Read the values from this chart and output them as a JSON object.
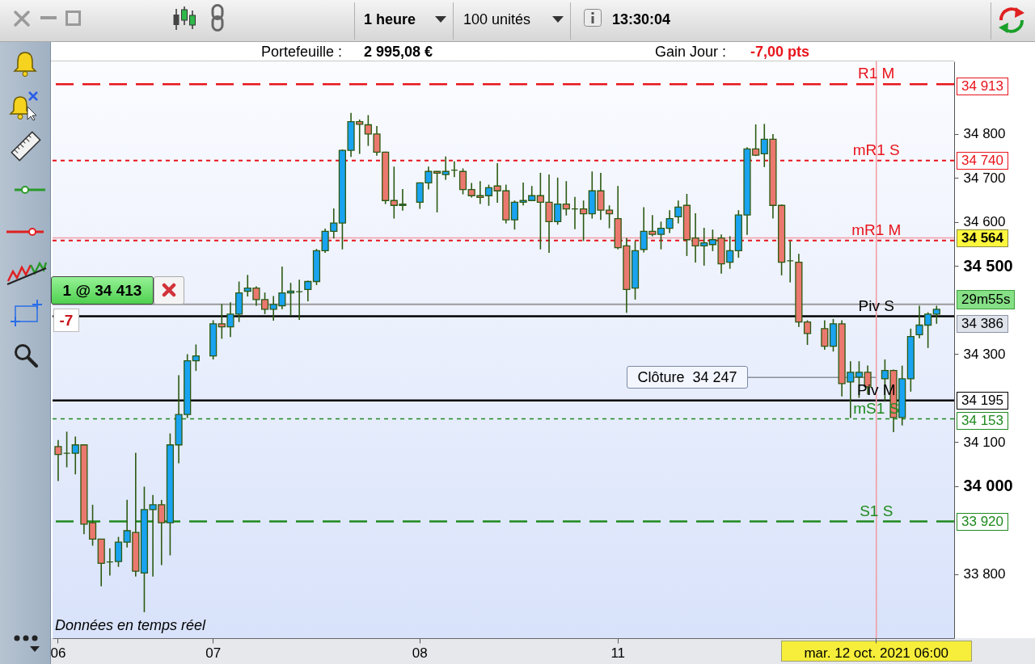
{
  "chart_data": {
    "type": "candlestick",
    "categories": [
      "06",
      null,
      null,
      null,
      null,
      null,
      null,
      null,
      null,
      null,
      null,
      null,
      null,
      null,
      null,
      null,
      null,
      null,
      "07",
      null,
      null,
      null,
      null,
      null,
      null,
      null,
      null,
      null,
      null,
      null,
      null,
      null,
      null,
      null,
      null,
      null,
      null,
      null,
      null,
      null,
      null,
      null,
      "08",
      null,
      null,
      null,
      null,
      null,
      null,
      null,
      null,
      null,
      null,
      null,
      null,
      null,
      null,
      null,
      null,
      null,
      null,
      null,
      null,
      null,
      null,
      "11",
      null,
      null,
      null,
      null,
      null,
      null,
      null,
      null,
      null,
      null,
      null,
      null,
      null,
      null,
      null,
      null,
      null,
      null,
      null,
      null,
      null,
      null,
      null,
      null,
      null,
      null,
      null,
      null,
      null,
      "mar. 12 oct. 2021 06:00",
      null,
      null,
      null,
      null,
      null,
      null,
      null
    ],
    "ohlc": [
      [
        34090,
        34105,
        34012,
        34072
      ],
      [
        34075,
        34124,
        34043,
        34075
      ],
      [
        34075,
        34113,
        34027,
        34094
      ],
      [
        34094,
        34094,
        33891,
        33914
      ],
      [
        33917,
        33958,
        33865,
        33880
      ],
      [
        33880,
        33880,
        33773,
        33825
      ],
      [
        33828,
        33859,
        33797,
        33828
      ],
      [
        33829,
        33885,
        33817,
        33873
      ],
      [
        33873,
        33969,
        33861,
        33899
      ],
      [
        33895,
        34076,
        33795,
        33807
      ],
      [
        33803,
        33999,
        33714,
        33947
      ],
      [
        33947,
        33980,
        33795,
        33958
      ],
      [
        33958,
        33969,
        33821,
        33917
      ],
      [
        33917,
        34120,
        33843,
        34094
      ],
      [
        34094,
        34252,
        34052,
        34163
      ],
      [
        34163,
        34300,
        34155,
        34285
      ],
      [
        34285,
        34322,
        34262,
        34296
      ],
      null,
      [
        34296,
        34377,
        34288,
        34369
      ],
      [
        34369,
        34414,
        34335,
        34362
      ],
      [
        34362,
        34418,
        34339,
        34391
      ],
      [
        34391,
        34465,
        34373,
        34439
      ],
      [
        34443,
        34480,
        34431,
        34450
      ],
      [
        34450,
        34454,
        34410,
        34424
      ],
      [
        34424,
        34440,
        34391,
        34402
      ],
      [
        34402,
        34432,
        34376,
        34413
      ],
      [
        34410,
        34499,
        34402,
        34439
      ],
      [
        34439,
        34462,
        34387,
        34443
      ],
      [
        34442,
        34469,
        34378,
        34442
      ],
      [
        34447,
        34467,
        34420,
        34465
      ],
      [
        34465,
        34539,
        34457,
        34535
      ],
      [
        34535,
        34585,
        34530,
        34579
      ],
      [
        34579,
        34631,
        34563,
        34598
      ],
      [
        34598,
        34765,
        34538,
        34763
      ],
      [
        34763,
        34848,
        34748,
        34828
      ],
      [
        34828,
        34833,
        34755,
        34822
      ],
      [
        34821,
        34843,
        34773,
        34800
      ],
      [
        34800,
        34818,
        34751,
        34759
      ],
      [
        34759,
        34760,
        34641,
        34649
      ],
      [
        34649,
        34726,
        34608,
        34638
      ],
      [
        34638,
        34675,
        34626,
        34641
      ],
      null,
      [
        34645,
        34690,
        34630,
        34689
      ],
      [
        34689,
        34726,
        34674,
        34715
      ],
      [
        34715,
        34716,
        34622,
        34711
      ],
      [
        34708,
        34749,
        34696,
        34715
      ],
      [
        34718,
        34738,
        34702,
        34718
      ],
      [
        34715,
        34722,
        34663,
        34674
      ],
      [
        34674,
        34689,
        34656,
        34660
      ],
      [
        34660,
        34693,
        34641,
        34656
      ],
      [
        34660,
        34685,
        34637,
        34678
      ],
      [
        34682,
        34734,
        34644,
        34671
      ],
      [
        34671,
        34685,
        34597,
        34605
      ],
      [
        34605,
        34649,
        34583,
        34645
      ],
      [
        34645,
        34690,
        34638,
        34649
      ],
      [
        34649,
        34682,
        34648,
        34660
      ],
      [
        34660,
        34712,
        34538,
        34645
      ],
      [
        34645,
        34708,
        34530,
        34601
      ],
      [
        34601,
        34701,
        34594,
        34641
      ],
      [
        34641,
        34693,
        34615,
        34630
      ],
      [
        34630,
        34657,
        34584,
        34630
      ],
      [
        34630,
        34649,
        34557,
        34619
      ],
      [
        34619,
        34715,
        34608,
        34671
      ],
      [
        34671,
        34712,
        34605,
        34627
      ],
      [
        34627,
        34638,
        34586,
        34619
      ],
      [
        34608,
        34682,
        34538,
        34542
      ],
      [
        34546,
        34564,
        34394,
        34447
      ],
      [
        34450,
        34557,
        34424,
        34535
      ],
      [
        34538,
        34634,
        34531,
        34579
      ],
      [
        34579,
        34616,
        34568,
        34572
      ],
      [
        34572,
        34601,
        34538,
        34586
      ],
      [
        34586,
        34627,
        34575,
        34608
      ],
      [
        34612,
        34649,
        34597,
        34634
      ],
      [
        34638,
        34664,
        34523,
        34560
      ],
      [
        34564,
        34620,
        34508,
        34546
      ],
      [
        34546,
        34587,
        34501,
        34553
      ],
      [
        34549,
        34583,
        34534,
        34560
      ],
      [
        34564,
        34572,
        34483,
        34505
      ],
      [
        34509,
        34568,
        34494,
        34535
      ],
      [
        34535,
        34627,
        34519,
        34616
      ],
      [
        34616,
        34770,
        34571,
        34766
      ],
      [
        34766,
        34822,
        34750,
        34752
      ],
      [
        34755,
        34823,
        34725,
        34788
      ],
      [
        34788,
        34800,
        34608,
        34638
      ],
      [
        34638,
        34640,
        34479,
        34509
      ],
      [
        34512,
        34557,
        34463,
        34512
      ],
      [
        34509,
        34528,
        34362,
        34373
      ],
      [
        34373,
        34377,
        34321,
        34347
      ],
      null,
      [
        34358,
        34377,
        34310,
        34318
      ],
      [
        34318,
        34380,
        34306,
        34369
      ],
      [
        34369,
        34377,
        34204,
        34233
      ],
      [
        34237,
        34284,
        34155,
        34259
      ],
      [
        34248,
        34284,
        34201,
        34259
      ],
      [
        34259,
        34274,
        34208,
        34226
      ],
      null,
      [
        34244,
        34288,
        34192,
        34263
      ],
      [
        34263,
        34265,
        34123,
        34156
      ],
      [
        34156,
        34274,
        34138,
        34244
      ],
      [
        34244,
        34358,
        34215,
        34340
      ],
      [
        34344,
        34410,
        34336,
        34366
      ],
      [
        34366,
        34395,
        34314,
        34391
      ],
      [
        34391,
        34410,
        34369,
        34402
      ]
    ],
    "colors": [
      "#eb786e",
      "#2c5a12",
      "#19a3f0",
      "#eb786e",
      "#eb786e",
      "#eb786e",
      "#2c5a12",
      "#19a3f0",
      "#19a3f0",
      "#eb786e",
      "#19a3f0",
      "#19a3f0",
      "#eb786e",
      "#19a3f0",
      "#19a3f0",
      "#19a3f0",
      "#19a3f0",
      null,
      "#19a3f0",
      "#eb786e",
      "#19a3f0",
      "#19a3f0",
      "#19a3f0",
      "#eb786e",
      "#eb786e",
      "#19a3f0",
      "#19a3f0",
      "#19a3f0",
      "#2c5a12",
      "#19a3f0",
      "#19a3f0",
      "#19a3f0",
      "#19a3f0",
      "#19a3f0",
      "#19a3f0",
      "#eb786e",
      "#eb786e",
      "#eb786e",
      "#eb786e",
      "#eb786e",
      "#19a3f0",
      null,
      "#19a3f0",
      "#19a3f0",
      "#eb786e",
      "#19a3f0",
      "#2c5a12",
      "#eb786e",
      "#eb786e",
      "#eb786e",
      "#19a3f0",
      "#eb786e",
      "#eb786e",
      "#19a3f0",
      "#19a3f0",
      "#19a3f0",
      "#eb786e",
      "#eb786e",
      "#19a3f0",
      "#eb786e",
      "#2c5a12",
      "#eb786e",
      "#19a3f0",
      "#eb786e",
      "#eb786e",
      "#eb786e",
      "#eb786e",
      "#19a3f0",
      "#19a3f0",
      "#eb786e",
      "#19a3f0",
      "#19a3f0",
      "#19a3f0",
      "#eb786e",
      "#eb786e",
      "#19a3f0",
      "#19a3f0",
      "#eb786e",
      "#19a3f0",
      "#19a3f0",
      "#19a3f0",
      "#eb786e",
      "#19a3f0",
      "#eb786e",
      "#eb786e",
      "#2c5a12",
      "#eb786e",
      "#eb786e",
      null,
      "#eb786e",
      "#19a3f0",
      "#eb786e",
      "#19a3f0",
      "#19a3f0",
      "#eb786e",
      null,
      "#19a3f0",
      "#eb786e",
      "#19a3f0",
      "#19a3f0",
      "#19a3f0",
      "#19a3f0",
      "#19a3f0"
    ],
    "ylim": [
      33655,
      34965
    ],
    "yticks": [
      {
        "value": 33800,
        "label": "33 800"
      },
      {
        "value": 34000,
        "label": "34 000"
      },
      {
        "value": 34100,
        "label": "34 100"
      },
      {
        "value": 34300,
        "label": "34 300"
      },
      {
        "value": 34500,
        "label": "34 500"
      },
      {
        "value": 34600,
        "label": "34 600"
      },
      {
        "value": 34700,
        "label": "34 700"
      },
      {
        "value": 34800,
        "label": "34 800"
      }
    ],
    "ref_lines": [
      {
        "axis": "y",
        "value": 34913,
        "label": "R1 M",
        "color": "#e8141c",
        "line_style": "dashed"
      },
      {
        "axis": "y",
        "value": 34740,
        "label": "mR1 S",
        "color": "#e8141c",
        "line_style": "dotted"
      },
      {
        "axis": "y",
        "value": 34564,
        "label": null,
        "color": "#f4a0a6",
        "line_style": "solid"
      },
      {
        "axis": "y",
        "value": 34558,
        "label": "mR1 M",
        "color": "#e8141c",
        "line_style": "dotted"
      },
      {
        "axis": "y",
        "value": 34413,
        "label": "1 @ 34 413",
        "color": "#9b9b9b",
        "line_style": "solid"
      },
      {
        "axis": "y",
        "value": 34386,
        "label": "Piv S",
        "color": "#000000",
        "line_style": "solid"
      },
      {
        "axis": "y",
        "value": 34247,
        "label": "Clôture  34 247",
        "color": "#8a8f98",
        "line_style": "solid"
      },
      {
        "axis": "y",
        "value": 34195,
        "label": "Piv M",
        "color": "#000000",
        "line_style": "solid"
      },
      {
        "axis": "y",
        "value": 34153,
        "label": "mS1 S",
        "color": "#1e8a1e",
        "line_style": "dotted"
      },
      {
        "axis": "y",
        "value": 33920,
        "label": "S1 S",
        "color": "#1e8a1e",
        "line_style": "dashed"
      },
      {
        "axis": "x",
        "value": "mar. 12 oct. 2021 06:00",
        "label": null,
        "color": "#f29aa0",
        "line_style": "solid"
      }
    ],
    "annotations": [
      "Portefeuille :",
      "2 995,08 €",
      "Gain Jour :",
      "-7,00 pts",
      "-7",
      "29m55s",
      "Données en temps réel",
      "1 heure",
      "100 unités",
      "13:30:04",
      "34 913",
      "34 740",
      "34 564",
      "34 386",
      "34 195",
      "34 153",
      "33 920"
    ]
  }
}
